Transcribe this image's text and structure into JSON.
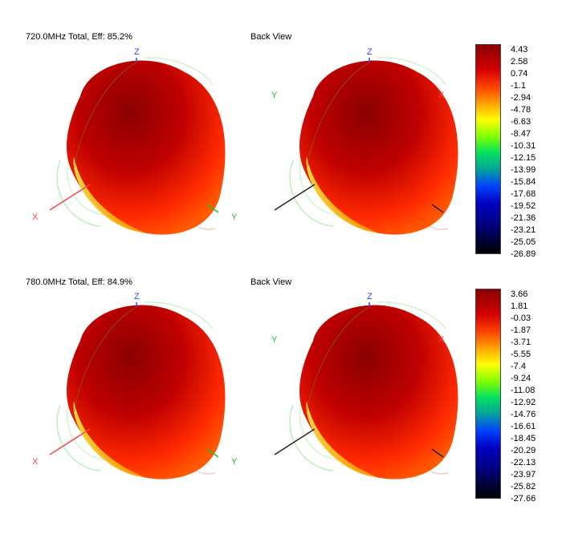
{
  "rows": [
    {
      "title": "720.0MHz Total, Eff: 85.2%",
      "view_label": "Back View",
      "scale": [
        "4.43",
        "2.58",
        "0.74",
        "-1.1",
        "-2.94",
        "-4.78",
        "-6.63",
        "-8.47",
        "-10.31",
        "-12.15",
        "-13.99",
        "-15.84",
        "-17.68",
        "-19.52",
        "-21.36",
        "-23.21",
        "-25.05",
        "-26.89"
      ]
    },
    {
      "title": "780.0MHz Total, Eff: 84.9%",
      "view_label": "Back View",
      "scale": [
        "3.66",
        "1.81",
        "-0.03",
        "-1.87",
        "-3.71",
        "-5.55",
        "-7.4",
        "-9.24",
        "-11.08",
        "-12.92",
        "-14.76",
        "-16.61",
        "-18.45",
        "-20.29",
        "-22.13",
        "-23.97",
        "-25.82",
        "-27.66"
      ]
    }
  ],
  "axes": {
    "x": "X",
    "y": "Y",
    "z": "Z"
  },
  "colors": {
    "x_axis": "#ff4040",
    "y_axis": "#20c020",
    "z_axis": "#4040ff",
    "lobe_dark": "#8b0000",
    "lobe_mid": "#c00000",
    "lobe_bright": "#ff2a00",
    "lobe_yellow": "#f5e84a"
  }
}
